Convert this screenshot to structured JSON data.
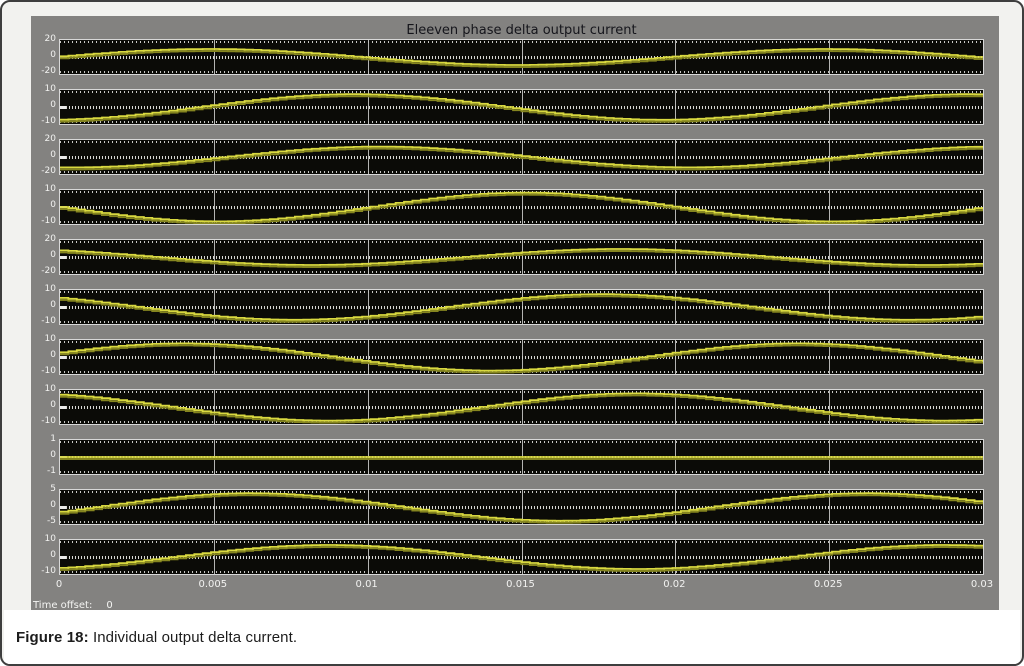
{
  "window": {
    "title": "Eleeven phase delta output current",
    "time_offset_label": "Time offset:",
    "time_offset_value": "0"
  },
  "caption": {
    "label": "Figure 18:",
    "text": " Individual output delta current."
  },
  "colors": {
    "panel_gray": "#838280",
    "plot_background": "#0b0b07",
    "waveform_yellow": "#d9d940",
    "waveform_shadow_olive": "#85851f",
    "gridline_gray": "#b4b4b2",
    "axis_text_white": "#f2f2f0",
    "title_text": "#15151b"
  },
  "chart_data": {
    "type": "line",
    "title": "Eleeven phase delta output current",
    "x_tick_labels": [
      "0",
      "0.005",
      "0.01",
      "0.015",
      "0.02",
      "0.025",
      "0.03"
    ],
    "x_range_seconds": [
      0,
      0.03
    ],
    "frequency_hz": 50,
    "waveform_style": "stepped-sine",
    "grid": true,
    "legend": "none",
    "subplots": [
      {
        "index": 1,
        "y_tick_labels": [
          "20",
          "0",
          "-20"
        ],
        "ylim": [
          -20,
          20
        ],
        "amplitude": 10,
        "phase_deg": 5
      },
      {
        "index": 2,
        "y_tick_labels": [
          "10",
          "0",
          "-10"
        ],
        "ylim": [
          -10,
          10
        ],
        "amplitude": 8,
        "phase_deg": -80
      },
      {
        "index": 3,
        "y_tick_labels": [
          "20",
          "0",
          "-20"
        ],
        "ylim": [
          -20,
          20
        ],
        "amplitude": 13,
        "phase_deg": -95
      },
      {
        "index": 4,
        "y_tick_labels": [
          "10",
          "0",
          "-10"
        ],
        "ylim": [
          -10,
          10
        ],
        "amplitude": 9,
        "phase_deg": 180
      },
      {
        "index": 5,
        "y_tick_labels": [
          "20",
          "0",
          "-20"
        ],
        "ylim": [
          -20,
          20
        ],
        "amplitude": 10,
        "phase_deg": 125
      },
      {
        "index": 6,
        "y_tick_labels": [
          "10",
          "0",
          "-10"
        ],
        "ylim": [
          -10,
          10
        ],
        "amplitude": 8,
        "phase_deg": 135
      },
      {
        "index": 7,
        "y_tick_labels": [
          "10",
          "0",
          "-10"
        ],
        "ylim": [
          -10,
          10
        ],
        "amplitude": 8.5,
        "phase_deg": 20
      },
      {
        "index": 8,
        "y_tick_labels": [
          "10",
          "0",
          "-10"
        ],
        "ylim": [
          -10,
          10
        ],
        "amplitude": 8.5,
        "phase_deg": 115
      },
      {
        "index": 9,
        "y_tick_labels": [
          "1",
          "0",
          "-1"
        ],
        "ylim": [
          -1,
          1
        ],
        "amplitude": 0,
        "phase_deg": 0
      },
      {
        "index": 10,
        "y_tick_labels": [
          "5",
          "0",
          "-5"
        ],
        "ylim": [
          -5,
          5
        ],
        "amplitude": 4.3,
        "phase_deg": -20
      },
      {
        "index": 11,
        "y_tick_labels": [
          "10",
          "0",
          "-10"
        ],
        "ylim": [
          -10,
          10
        ],
        "amplitude": 7.5,
        "phase_deg": -65
      }
    ]
  }
}
